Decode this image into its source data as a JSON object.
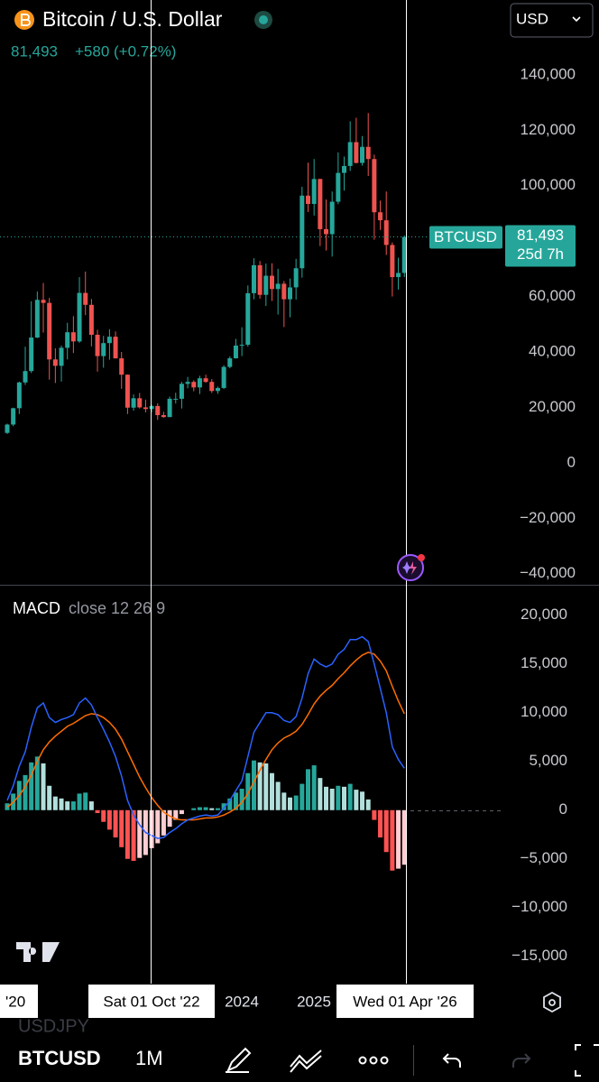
{
  "header": {
    "title": "Bitcoin / U.S. Dollar",
    "price": "81,493",
    "change": "+580 (+0.72%)",
    "currency": "USD"
  },
  "chart_data": [
    {
      "type": "candlestick",
      "x": [
        "2020-10",
        "2020-11",
        "2020-12",
        "2021-01",
        "2021-02",
        "2021-03",
        "2021-04",
        "2021-05",
        "2021-06",
        "2021-07",
        "2021-08",
        "2021-09",
        "2021-10",
        "2021-11",
        "2021-12",
        "2022-01",
        "2022-02",
        "2022-03",
        "2022-04",
        "2022-05",
        "2022-06",
        "2022-07",
        "2022-08",
        "2022-09",
        "2022-10",
        "2022-11",
        "2022-12",
        "2023-01",
        "2023-02",
        "2023-03",
        "2023-04",
        "2023-05",
        "2023-06",
        "2023-07",
        "2023-08",
        "2023-09",
        "2023-10",
        "2023-11",
        "2023-12",
        "2024-01",
        "2024-02",
        "2024-03",
        "2024-04",
        "2024-05",
        "2024-06",
        "2024-07",
        "2024-08",
        "2024-09",
        "2024-10",
        "2024-11",
        "2024-12",
        "2025-01",
        "2025-02",
        "2025-03",
        "2025-04",
        "2025-05",
        "2025-06",
        "2025-07",
        "2025-08",
        "2025-09",
        "2025-10",
        "2025-11",
        "2025-12",
        "2026-01",
        "2026-02",
        "2026-03",
        "2026-04"
      ],
      "open": [
        10800,
        13800,
        19700,
        29000,
        33100,
        45200,
        58800,
        57700,
        37300,
        35000,
        41500,
        47100,
        43800,
        61300,
        57000,
        46200,
        38500,
        43200,
        45500,
        37700,
        31800,
        19900,
        23300,
        20000,
        19400,
        20500,
        17200,
        16500,
        23100,
        23100,
        28500,
        29200,
        27200,
        30500,
        29200,
        25900,
        27000,
        34600,
        37700,
        42300,
        42600,
        61200,
        71300,
        60600,
        67500,
        62700,
        64600,
        59000,
        63300,
        70200,
        96400,
        93400,
        102400,
        84300,
        82500,
        94200,
        104600,
        107100,
        115700,
        108200,
        114000,
        109600,
        90400,
        87500,
        78600,
        67000,
        68500
      ],
      "high": [
        14100,
        19900,
        29300,
        41900,
        58300,
        61800,
        64900,
        59500,
        41300,
        42300,
        50500,
        52900,
        67000,
        69000,
        59100,
        48000,
        45800,
        48200,
        47400,
        40000,
        31900,
        24700,
        25200,
        22800,
        21000,
        21500,
        18400,
        23900,
        25300,
        29200,
        31000,
        29800,
        31400,
        31800,
        30200,
        27500,
        35200,
        38400,
        44700,
        48900,
        64000,
        73800,
        72800,
        71900,
        72000,
        70000,
        65600,
        66500,
        73600,
        99600,
        108300,
        109600,
        102500,
        95000,
        97900,
        112000,
        110500,
        123200,
        124500,
        117900,
        126200,
        111200,
        94600,
        97900,
        79500,
        74000,
        82000
      ],
      "low": [
        10400,
        13200,
        17600,
        28100,
        32400,
        45000,
        47000,
        30000,
        28800,
        29300,
        37300,
        39600,
        43300,
        53300,
        42000,
        32900,
        34300,
        37200,
        37600,
        26700,
        17600,
        18800,
        19600,
        18200,
        18200,
        15500,
        16300,
        16500,
        21400,
        19600,
        26900,
        25800,
        24800,
        28900,
        25200,
        24900,
        26600,
        34100,
        37600,
        38500,
        41900,
        59000,
        59200,
        56600,
        58400,
        53500,
        49000,
        52500,
        58900,
        66800,
        90500,
        89200,
        78200,
        76600,
        74400,
        93300,
        98200,
        105300,
        108000,
        107200,
        103500,
        80500,
        84000,
        75000,
        60000,
        62500,
        67000
      ],
      "close": [
        13800,
        19700,
        29000,
        33100,
        45200,
        58800,
        57700,
        37300,
        35000,
        41500,
        47100,
        43800,
        61300,
        57000,
        46200,
        38500,
        43200,
        45500,
        37700,
        31800,
        19900,
        23300,
        20000,
        19400,
        20500,
        17200,
        16500,
        23100,
        23100,
        28500,
        29200,
        27200,
        30500,
        29200,
        25900,
        27000,
        34600,
        37700,
        42300,
        42600,
        61200,
        71300,
        60600,
        67500,
        62700,
        64600,
        59000,
        63300,
        70200,
        96400,
        93400,
        102400,
        84300,
        82500,
        94200,
        104600,
        107100,
        115700,
        108200,
        114000,
        109600,
        90400,
        87500,
        78600,
        67000,
        68500,
        81493
      ],
      "up_color": "#26a69a",
      "down_color": "#ef5350",
      "ylim": [
        -44000,
        144000
      ],
      "yticks": [
        {
          "value": 140000,
          "label": "140,000"
        },
        {
          "value": 120000,
          "label": "120,000"
        },
        {
          "value": 100000,
          "label": "100,000"
        },
        {
          "value": 80000,
          "label": "80,000"
        },
        {
          "value": 60000,
          "label": "60,000"
        },
        {
          "value": 40000,
          "label": "40,000"
        },
        {
          "value": 20000,
          "label": "20,000"
        },
        0,
        {
          "value": -20000,
          "label": "−20,000"
        },
        {
          "value": -40000,
          "label": "−40,000"
        }
      ],
      "last_price": {
        "symbol": "BTCUSD",
        "price": "81,493",
        "countdown": "25d 7h"
      }
    },
    {
      "type": "macd",
      "title": "MACD",
      "params": "close 12 26 9",
      "macd": [
        1000,
        2500,
        4500,
        6000,
        8500,
        10500,
        11000,
        9500,
        9000,
        9300,
        9500,
        9800,
        11000,
        11500,
        10800,
        9500,
        8300,
        7000,
        5500,
        3500,
        1000,
        -500,
        -1500,
        -2300,
        -2600,
        -2900,
        -2800,
        -2300,
        -1900,
        -1400,
        -1000,
        -800,
        -600,
        -500,
        -600,
        -500,
        200,
        1000,
        2000,
        3000,
        5500,
        8000,
        9000,
        10000,
        10000,
        9800,
        9200,
        9000,
        9600,
        11500,
        14000,
        15500,
        15000,
        14700,
        15000,
        16000,
        16500,
        17500,
        17500,
        17800,
        17300,
        15000,
        12500,
        10000,
        6500,
        5200,
        4300
      ],
      "signal": [
        300,
        800,
        1500,
        2400,
        3600,
        5000,
        6200,
        7000,
        7600,
        8100,
        8600,
        8900,
        9300,
        9700,
        9900,
        9800,
        9500,
        9000,
        8300,
        7300,
        6000,
        4700,
        3400,
        2300,
        1300,
        500,
        -200,
        -600,
        -900,
        -1000,
        -1000,
        -1000,
        -900,
        -800,
        -800,
        -700,
        -500,
        -200,
        200,
        800,
        1700,
        2900,
        4100,
        5200,
        6200,
        6900,
        7400,
        7700,
        8100,
        8800,
        9800,
        10900,
        11700,
        12300,
        12800,
        13500,
        14100,
        14800,
        15400,
        15900,
        16200,
        16000,
        15300,
        14300,
        12700,
        11200,
        9900
      ],
      "histogram": [
        700,
        1700,
        3000,
        3600,
        4900,
        5500,
        4800,
        2500,
        1400,
        1200,
        900,
        900,
        1700,
        1800,
        900,
        -300,
        -1200,
        -2000,
        -2800,
        -3800,
        -5000,
        -5200,
        -4900,
        -4600,
        -3900,
        -3400,
        -2600,
        -1700,
        -1000,
        -400,
        0,
        200,
        300,
        300,
        200,
        200,
        700,
        1200,
        1800,
        2200,
        3800,
        5100,
        4900,
        4800,
        3800,
        2900,
        1800,
        1300,
        1500,
        2700,
        4200,
        4600,
        3300,
        2400,
        2200,
        2500,
        2400,
        2700,
        2100,
        1900,
        1100,
        -1000,
        -2800,
        -4300,
        -6200,
        -6000,
        -5600
      ],
      "macd_color": "#2962ff",
      "signal_color": "#ff6d00",
      "histogram_colors": {
        "grow_above": "#26a69a",
        "fall_above": "#b2dfdb",
        "grow_below": "#ff5252",
        "fall_below": "#ffcdd2"
      },
      "ylim": [
        -17800,
        23000
      ],
      "yticks": [
        {
          "value": 20000,
          "label": "20,000"
        },
        {
          "value": 15000,
          "label": "15,000"
        },
        {
          "value": 10000,
          "label": "10,000"
        },
        {
          "value": 5000,
          "label": "5,000"
        },
        0,
        {
          "value": -5000,
          "label": "−5,000"
        },
        {
          "value": -10000,
          "label": "−10,000"
        },
        {
          "value": -15000,
          "label": "−15,000"
        }
      ]
    }
  ],
  "time_axis": {
    "start": "'20",
    "year_2024": "2024",
    "year_2025": "2025",
    "crosshair_1": "Sat 01 Oct '22",
    "crosshair_2": "Wed 01 Apr '26"
  },
  "toolbar": {
    "ghost": "USDJPY",
    "symbol": "BTCUSD",
    "interval": "1M"
  }
}
